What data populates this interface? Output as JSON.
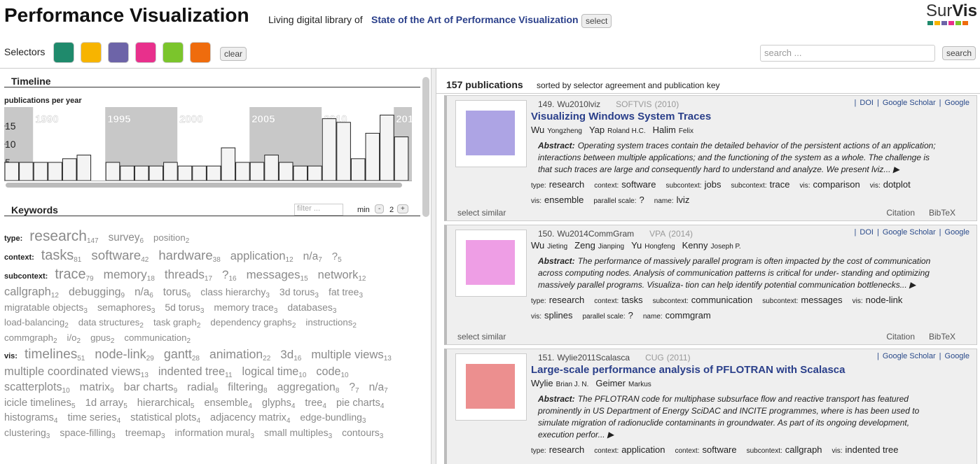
{
  "header": {
    "title": "Performance Visualization",
    "subtitle": "Living digital library of",
    "library": "State of the Art of Performance Visualization",
    "select_button": "select",
    "logo": {
      "sur": "Sur",
      "vis": "Vis"
    }
  },
  "selectors": {
    "label": "Selectors",
    "colors": [
      "#1f8a6c",
      "#f7b400",
      "#6d64a8",
      "#e8308c",
      "#7bc52c",
      "#ef6c0d"
    ],
    "clear": "clear"
  },
  "search": {
    "placeholder": "search ...",
    "button": "search"
  },
  "timeline": {
    "heading": "Timeline",
    "label": "publications per year",
    "bands": [
      "1990",
      "1995",
      "2000",
      "2005",
      "2010",
      "201"
    ],
    "ylim": [
      0,
      19
    ],
    "yticks": [
      5,
      10,
      15
    ],
    "values": [
      5,
      5,
      5,
      5,
      6,
      7,
      0,
      5,
      4,
      4,
      4,
      5,
      4,
      4,
      4,
      9,
      5,
      5,
      7,
      5,
      4,
      4,
      17,
      16,
      6,
      13,
      18,
      12
    ]
  },
  "keywords": {
    "heading": "Keywords",
    "filter_placeholder": "filter ...",
    "min_label": "min",
    "minus": "-",
    "min_value": 2,
    "plus": "+",
    "groups": [
      {
        "name": "type:",
        "items": [
          {
            "label": "research",
            "count": 147
          },
          {
            "label": "survey",
            "count": 6
          },
          {
            "label": "position",
            "count": 2
          }
        ]
      },
      {
        "name": "context:",
        "items": [
          {
            "label": "tasks",
            "count": 81
          },
          {
            "label": "software",
            "count": 42
          },
          {
            "label": "hardware",
            "count": 38
          },
          {
            "label": "application",
            "count": 12
          },
          {
            "label": "n/a",
            "count": 7
          },
          {
            "label": "?",
            "count": 5
          }
        ]
      },
      {
        "name": "subcontext:",
        "items": [
          {
            "label": "trace",
            "count": 79
          },
          {
            "label": "memory",
            "count": 18
          },
          {
            "label": "threads",
            "count": 17
          },
          {
            "label": "?",
            "count": 16
          },
          {
            "label": "messages",
            "count": 15
          },
          {
            "label": "network",
            "count": 12
          },
          {
            "label": "callgraph",
            "count": 12
          },
          {
            "label": "debugging",
            "count": 9
          },
          {
            "label": "n/a",
            "count": 6
          },
          {
            "label": "torus",
            "count": 6
          },
          {
            "label": "class hierarchy",
            "count": 3
          },
          {
            "label": "3d torus",
            "count": 3
          },
          {
            "label": "fat tree",
            "count": 3
          },
          {
            "label": "migratable objects",
            "count": 3
          },
          {
            "label": "semaphores",
            "count": 3
          },
          {
            "label": "5d torus",
            "count": 3
          },
          {
            "label": "memory trace",
            "count": 3
          },
          {
            "label": "databases",
            "count": 3
          },
          {
            "label": "load-balancing",
            "count": 2
          },
          {
            "label": "data structures",
            "count": 2
          },
          {
            "label": "task graph",
            "count": 2
          },
          {
            "label": "dependency graphs",
            "count": 2
          },
          {
            "label": "instructions",
            "count": 2
          },
          {
            "label": "commgraph",
            "count": 2
          },
          {
            "label": "i/o",
            "count": 2
          },
          {
            "label": "gpus",
            "count": 2
          },
          {
            "label": "communication",
            "count": 2
          }
        ]
      },
      {
        "name": "vis:",
        "items": [
          {
            "label": "timelines",
            "count": 51
          },
          {
            "label": "node-link",
            "count": 29
          },
          {
            "label": "gantt",
            "count": 28
          },
          {
            "label": "animation",
            "count": 22
          },
          {
            "label": "3d",
            "count": 16
          },
          {
            "label": "multiple views",
            "count": 13
          },
          {
            "label": "multiple coordinated views",
            "count": 13
          },
          {
            "label": "indented tree",
            "count": 11
          },
          {
            "label": "logical time",
            "count": 10
          },
          {
            "label": "code",
            "count": 10
          },
          {
            "label": "scatterplots",
            "count": 10
          },
          {
            "label": "matrix",
            "count": 9
          },
          {
            "label": "bar charts",
            "count": 9
          },
          {
            "label": "radial",
            "count": 8
          },
          {
            "label": "filtering",
            "count": 8
          },
          {
            "label": "aggregation",
            "count": 8
          },
          {
            "label": "?",
            "count": 7
          },
          {
            "label": "n/a",
            "count": 7
          },
          {
            "label": "icicle timelines",
            "count": 5
          },
          {
            "label": "1d array",
            "count": 5
          },
          {
            "label": "hierarchical",
            "count": 5
          },
          {
            "label": "ensemble",
            "count": 4
          },
          {
            "label": "glyphs",
            "count": 4
          },
          {
            "label": "tree",
            "count": 4
          },
          {
            "label": "pie charts",
            "count": 4
          },
          {
            "label": "histograms",
            "count": 4
          },
          {
            "label": "time series",
            "count": 4
          },
          {
            "label": "statistical plots",
            "count": 4
          },
          {
            "label": "adjacency matrix",
            "count": 4
          },
          {
            "label": "edge-bundling",
            "count": 3
          },
          {
            "label": "clustering",
            "count": 3
          },
          {
            "label": "space-filling",
            "count": 3
          },
          {
            "label": "treemap",
            "count": 3
          },
          {
            "label": "information mural",
            "count": 3
          },
          {
            "label": "small multiples",
            "count": 3
          },
          {
            "label": "contours",
            "count": 3
          }
        ]
      }
    ]
  },
  "results": {
    "count": "157 publications",
    "sort": "sorted by selector agreement and publication key",
    "publications": [
      {
        "number": "149.",
        "key": "Wu2010lviz",
        "venue": "SOFTVIS",
        "year": "(2010)",
        "links": [
          "DOI",
          "Google Scholar",
          "Google"
        ],
        "title": "Visualizing Windows System Traces",
        "authors": [
          {
            "last": "Wu",
            "first": "Yongzheng"
          },
          {
            "last": "Yap",
            "first": "Roland H.C."
          },
          {
            "last": "Halim",
            "first": "Felix"
          }
        ],
        "abstract_label": "Abstract:",
        "abstract": "Operating system traces contain the detailed behavior of the persistent actions of an application; interactions between multiple applications; and the functioning of the system as a whole. The challenge is that such traces are large and consequently hard to understand and analyze. We present lviz... ▶",
        "tags": [
          {
            "key": "type:",
            "value": "research"
          },
          {
            "key": "context:",
            "value": "software"
          },
          {
            "key": "subcontext:",
            "value": "jobs"
          },
          {
            "key": "subcontext:",
            "value": "trace"
          },
          {
            "key": "vis:",
            "value": "comparison"
          },
          {
            "key": "vis:",
            "value": "dotplot"
          },
          {
            "key": "vis:",
            "value": "ensemble"
          },
          {
            "key": "parallel scale:",
            "value": "?"
          },
          {
            "key": "name:",
            "value": "lviz"
          }
        ],
        "select_similar": "select similar",
        "citation": "Citation",
        "bibtex": "BibTeX"
      },
      {
        "number": "150.",
        "key": "Wu2014CommGram",
        "venue": "VPA",
        "year": "(2014)",
        "links": [
          "DOI",
          "Google Scholar",
          "Google"
        ],
        "authors": [
          {
            "last": "Wu",
            "first": "Jieting"
          },
          {
            "last": "Zeng",
            "first": "Jianping"
          },
          {
            "last": "Yu",
            "first": "Hongfeng"
          },
          {
            "last": "Kenny",
            "first": "Joseph P."
          }
        ],
        "abstract_label": "Abstract:",
        "abstract": "The performance of massively parallel program is often impacted by the cost of communication across computing nodes. Analysis of communication patterns is critical for under- standing and optimizing massively parallel programs. Visualiza- tion can help identify potential communication bottlenecks... ▶",
        "tags": [
          {
            "key": "type:",
            "value": "research"
          },
          {
            "key": "context:",
            "value": "tasks"
          },
          {
            "key": "subcontext:",
            "value": "communication"
          },
          {
            "key": "subcontext:",
            "value": "messages"
          },
          {
            "key": "vis:",
            "value": "node-link"
          },
          {
            "key": "vis:",
            "value": "splines"
          },
          {
            "key": "parallel scale:",
            "value": "?"
          },
          {
            "key": "name:",
            "value": "commgram"
          }
        ],
        "select_similar": "select similar",
        "citation": "Citation",
        "bibtex": "BibTeX"
      },
      {
        "number": "151.",
        "key": "Wylie2011Scalasca",
        "venue": "CUG",
        "year": "(2011)",
        "links": [
          "Google Scholar",
          "Google"
        ],
        "title": "Large-scale performance analysis of PFLOTRAN with Scalasca",
        "authors": [
          {
            "last": "Wylie",
            "first": "Brian J. N."
          },
          {
            "last": "Geimer",
            "first": "Markus"
          }
        ],
        "abstract_label": "Abstract:",
        "abstract": "The PFLOTRAN code for multiphase subsurface flow and reactive transport has featured prominently in US Department of Energy SciDAC and INCITE programmes, where is has been used to simulate migration of radionuclide contaminants in groundwater. As part of its ongoing development, execution perfor... ▶",
        "tags": [
          {
            "key": "type:",
            "value": "research"
          },
          {
            "key": "context:",
            "value": "application"
          },
          {
            "key": "context:",
            "value": "software"
          },
          {
            "key": "subcontext:",
            "value": "callgraph"
          },
          {
            "key": "vis:",
            "value": "indented tree"
          }
        ]
      }
    ]
  }
}
